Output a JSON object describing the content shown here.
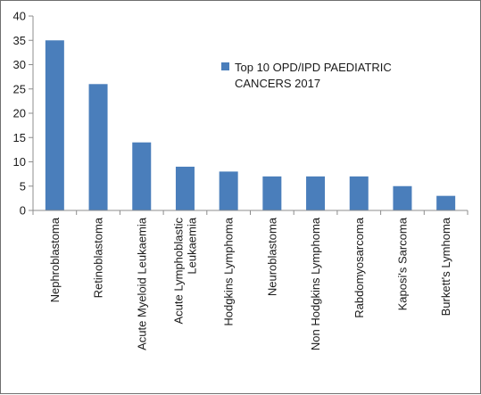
{
  "chart_data": {
    "type": "bar",
    "categories": [
      "Nephroblastoma",
      "Retinoblastoma",
      "Acute Myeloid Leukaemia",
      "Acute Lymphoblastic Leukaemia",
      "Hodgkins Lymphoma",
      "Neuroblastoma",
      "Non Hodgkins Lymphoma",
      "Rabdomyosarcoma",
      "Kaposi's Sarcoma",
      "Burkett's Lymhoma"
    ],
    "category_lines": [
      [
        "Nephroblastoma"
      ],
      [
        "Retinoblastoma"
      ],
      [
        "Acute Myeloid Leukaemia"
      ],
      [
        "Acute Lymphoblastic",
        "Leukaemia"
      ],
      [
        "Hodgkins Lymphoma"
      ],
      [
        "Neuroblastoma"
      ],
      [
        "Non Hodgkins Lymphoma"
      ],
      [
        "Rabdomyosarcoma"
      ],
      [
        "Kaposi's Sarcoma"
      ],
      [
        "Burkett's Lymhoma"
      ]
    ],
    "series": [
      {
        "name": "Top 10 OPD/IPD PAEDIATRIC CANCERS 2017",
        "values": [
          35,
          26,
          14,
          9,
          8,
          7,
          7,
          7,
          5,
          3
        ]
      }
    ],
    "legend_lines": [
      "Top 10 OPD/IPD PAEDIATRIC",
      "CANCERS 2017"
    ],
    "ylim": [
      0,
      40
    ],
    "yticks": [
      0,
      5,
      10,
      15,
      20,
      25,
      30,
      35,
      40
    ],
    "grid": false,
    "legend_position": "right",
    "colors": {
      "bar": "#4a7ebb",
      "axis": "#8c8c8c",
      "text": "#1a1a1a"
    }
  }
}
